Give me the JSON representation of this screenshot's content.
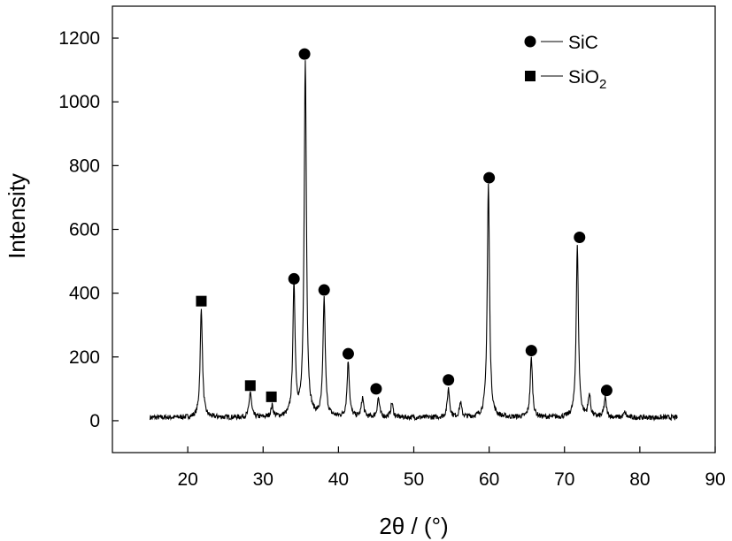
{
  "chart_data": {
    "type": "line",
    "xlabel": "2θ / (°)",
    "ylabel": "Intensity",
    "xlim": [
      10,
      90
    ],
    "ylim": [
      -100,
      1300
    ],
    "x_ticks": [
      20,
      30,
      40,
      50,
      60,
      70,
      80,
      90
    ],
    "y_ticks": [
      0,
      200,
      400,
      600,
      800,
      1000,
      1200
    ],
    "x_tick_labels": [
      "20",
      "30",
      "40",
      "50",
      "60",
      "70",
      "80",
      "90"
    ],
    "y_tick_labels": [
      "0",
      "200",
      "400",
      "600",
      "800",
      "1000",
      "1200"
    ],
    "grid": false,
    "legend_position": "top-right",
    "legend": [
      {
        "marker": "circle",
        "label": "SiC"
      },
      {
        "marker": "square",
        "label": "SiO",
        "subscript": "2"
      }
    ],
    "baseline": {
      "x_range": [
        15,
        85
      ],
      "level": 10,
      "noise": 8
    },
    "peaks": [
      {
        "x": 21.8,
        "y": 350,
        "phase": "SiO2"
      },
      {
        "x": 28.3,
        "y": 90,
        "phase": "SiO2"
      },
      {
        "x": 31.2,
        "y": 45,
        "phase": "SiO2"
      },
      {
        "x": 34.1,
        "y": 420,
        "phase": "SiC"
      },
      {
        "x": 35.6,
        "y": 1120,
        "phase": "SiC"
      },
      {
        "x": 38.1,
        "y": 380,
        "phase": "SiC"
      },
      {
        "x": 41.3,
        "y": 185,
        "phase": "SiC"
      },
      {
        "x": 43.2,
        "y": 70
      },
      {
        "x": 45.3,
        "y": 70,
        "phase": "SiC"
      },
      {
        "x": 47.1,
        "y": 55
      },
      {
        "x": 54.6,
        "y": 100,
        "phase": "SiC"
      },
      {
        "x": 56.2,
        "y": 55
      },
      {
        "x": 59.9,
        "y": 740,
        "phase": "SiC"
      },
      {
        "x": 65.6,
        "y": 195,
        "phase": "SiC"
      },
      {
        "x": 71.7,
        "y": 545,
        "phase": "SiC"
      },
      {
        "x": 73.3,
        "y": 80
      },
      {
        "x": 75.4,
        "y": 70,
        "phase": "SiC"
      },
      {
        "x": 78.0,
        "y": 25
      }
    ],
    "markers": [
      {
        "type": "square",
        "x": 21.8,
        "y": 375
      },
      {
        "type": "square",
        "x": 28.3,
        "y": 110
      },
      {
        "type": "square",
        "x": 31.1,
        "y": 75
      },
      {
        "type": "circle",
        "x": 34.1,
        "y": 445
      },
      {
        "type": "circle",
        "x": 35.5,
        "y": 1150
      },
      {
        "type": "circle",
        "x": 38.1,
        "y": 410
      },
      {
        "type": "circle",
        "x": 41.3,
        "y": 210
      },
      {
        "type": "circle",
        "x": 45.0,
        "y": 100
      },
      {
        "type": "circle",
        "x": 54.6,
        "y": 128
      },
      {
        "type": "circle",
        "x": 60.0,
        "y": 762
      },
      {
        "type": "circle",
        "x": 65.6,
        "y": 220
      },
      {
        "type": "circle",
        "x": 72.0,
        "y": 575
      },
      {
        "type": "circle",
        "x": 75.6,
        "y": 95
      }
    ],
    "line_color": "#000000",
    "marker_color": "#000000"
  }
}
